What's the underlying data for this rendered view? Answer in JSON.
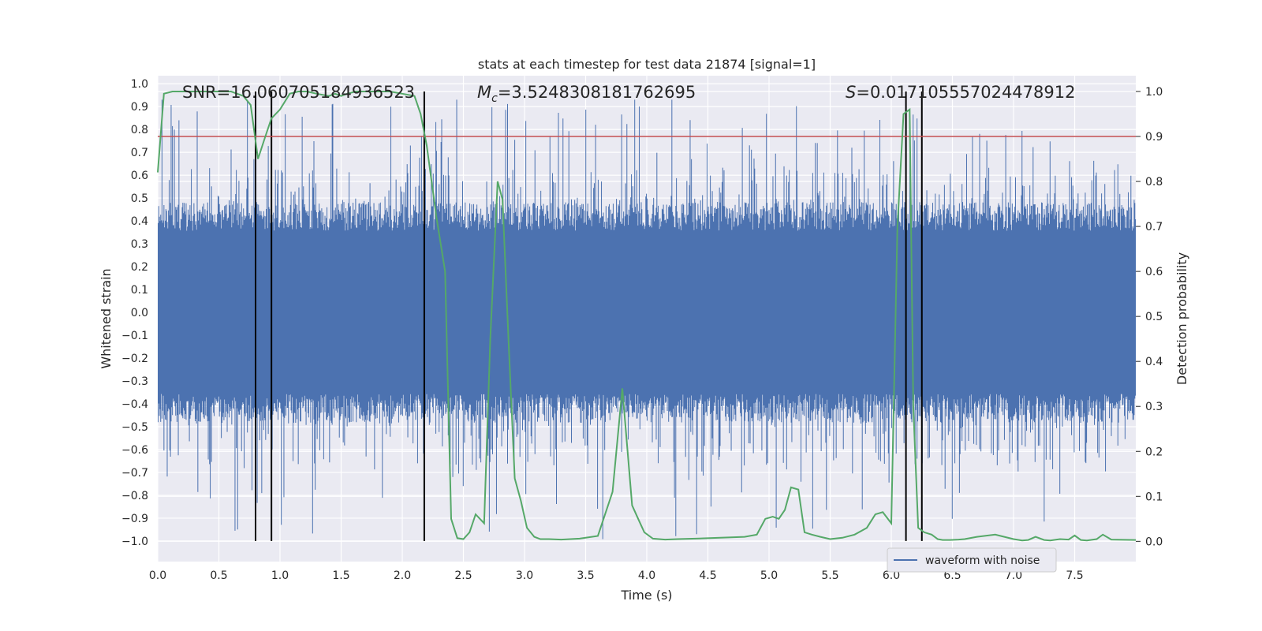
{
  "chart_data": {
    "type": "line",
    "title": "stats at each timestep for test data 21874 [signal=1]",
    "xlabel": "Time (s)",
    "ylabel": "Whitened strain",
    "y2label": "Detection probability",
    "xlim": [
      0.0,
      8.0
    ],
    "ylim": [
      -1.09,
      1.035
    ],
    "y2lim": [
      -0.045,
      1.035
    ],
    "xticks": [
      "0.0",
      "0.5",
      "1.0",
      "1.5",
      "2.0",
      "2.5",
      "3.0",
      "3.5",
      "4.0",
      "4.5",
      "5.0",
      "5.5",
      "6.0",
      "6.5",
      "7.0",
      "7.5"
    ],
    "yticks": [
      "1.0",
      "0.9",
      "0.8",
      "0.7",
      "0.6",
      "0.5",
      "0.4",
      "0.3",
      "0.2",
      "0.1",
      "0.0",
      "−0.1",
      "−0.2",
      "−0.3",
      "−0.4",
      "−0.5",
      "−0.6",
      "−0.7",
      "−0.8",
      "−0.9",
      "−1.0"
    ],
    "y2ticks": [
      "1.0",
      "0.9",
      "0.8",
      "0.7",
      "0.6",
      "0.5",
      "0.4",
      "0.3",
      "0.2",
      "0.1",
      "0.0"
    ],
    "grid": true,
    "legend": {
      "location": "lower right",
      "entries": [
        "waveform with noise"
      ]
    },
    "annotations": {
      "snr": "SNR=16.060705184936523",
      "mc_symbol": "M",
      "mc_subscript": "c",
      "mc_value": "=3.5248308181762695",
      "s_symbol": "S",
      "s_value": "=0.017105557024478912"
    },
    "threshold": 0.9,
    "vertical_lines": [
      0.8,
      0.93,
      2.18,
      6.12,
      6.25
    ],
    "series": [
      {
        "name": "waveform with noise",
        "color": "#4c72b0",
        "description": "dense noisy whitened strain, core band roughly -0.4 to 0.4 with spikes to about +0.93 / -1.0",
        "envelope": {
          "core_half_width": 0.42,
          "max_peak": 0.93,
          "min_trough": -1.0
        }
      },
      {
        "name": "detection probability",
        "color": "#55a868",
        "x": [
          0.0,
          0.05,
          0.12,
          0.2,
          0.3,
          0.4,
          0.5,
          0.6,
          0.7,
          0.76,
          0.82,
          0.88,
          0.93,
          1.0,
          1.08,
          1.15,
          1.22,
          1.3,
          1.4,
          1.45,
          1.5,
          1.55,
          1.62,
          1.7,
          1.8,
          1.9,
          2.0,
          2.1,
          2.15,
          2.2,
          2.28,
          2.35,
          2.4,
          2.45,
          2.5,
          2.55,
          2.6,
          2.67,
          2.72,
          2.78,
          2.82,
          2.87,
          2.92,
          2.97,
          3.02,
          3.08,
          3.13,
          3.2,
          3.3,
          3.45,
          3.6,
          3.72,
          3.8,
          3.88,
          3.93,
          3.98,
          4.05,
          4.15,
          4.25,
          4.4,
          4.6,
          4.8,
          4.9,
          4.97,
          5.03,
          5.08,
          5.13,
          5.18,
          5.24,
          5.29,
          5.35,
          5.42,
          5.5,
          5.6,
          5.7,
          5.8,
          5.87,
          5.93,
          6.0,
          6.05,
          6.1,
          6.15,
          6.18,
          6.22,
          6.27,
          6.33,
          6.38,
          6.42,
          6.48,
          6.55,
          6.6,
          6.7,
          6.85,
          7.0,
          7.07,
          7.12,
          7.18,
          7.25,
          7.3,
          7.38,
          7.45,
          7.5,
          7.55,
          7.6,
          7.68,
          7.73,
          7.8,
          8.0
        ],
        "y": [
          0.82,
          0.995,
          1.0,
          1.0,
          1.0,
          1.0,
          1.0,
          1.0,
          0.99,
          0.97,
          0.85,
          0.9,
          0.94,
          0.96,
          0.995,
          1.0,
          1.0,
          0.995,
          0.99,
          0.995,
          0.99,
          0.995,
          1.0,
          1.0,
          1.0,
          1.0,
          0.995,
          0.99,
          0.95,
          0.88,
          0.72,
          0.6,
          0.05,
          0.007,
          0.005,
          0.02,
          0.06,
          0.04,
          0.45,
          0.8,
          0.76,
          0.44,
          0.14,
          0.09,
          0.03,
          0.01,
          0.005,
          0.005,
          0.004,
          0.006,
          0.012,
          0.11,
          0.34,
          0.08,
          0.05,
          0.02,
          0.006,
          0.004,
          0.005,
          0.006,
          0.008,
          0.01,
          0.015,
          0.05,
          0.055,
          0.05,
          0.07,
          0.12,
          0.115,
          0.02,
          0.015,
          0.01,
          0.005,
          0.008,
          0.015,
          0.03,
          0.06,
          0.065,
          0.04,
          0.7,
          0.95,
          0.96,
          0.3,
          0.03,
          0.02,
          0.015,
          0.005,
          0.003,
          0.003,
          0.004,
          0.005,
          0.01,
          0.015,
          0.005,
          0.002,
          0.003,
          0.01,
          0.003,
          0.002,
          0.005,
          0.004,
          0.013,
          0.003,
          0.002,
          0.005,
          0.015,
          0.004,
          0.003
        ]
      },
      {
        "name": "threshold",
        "color": "#c44e52",
        "y": 0.9
      }
    ]
  }
}
